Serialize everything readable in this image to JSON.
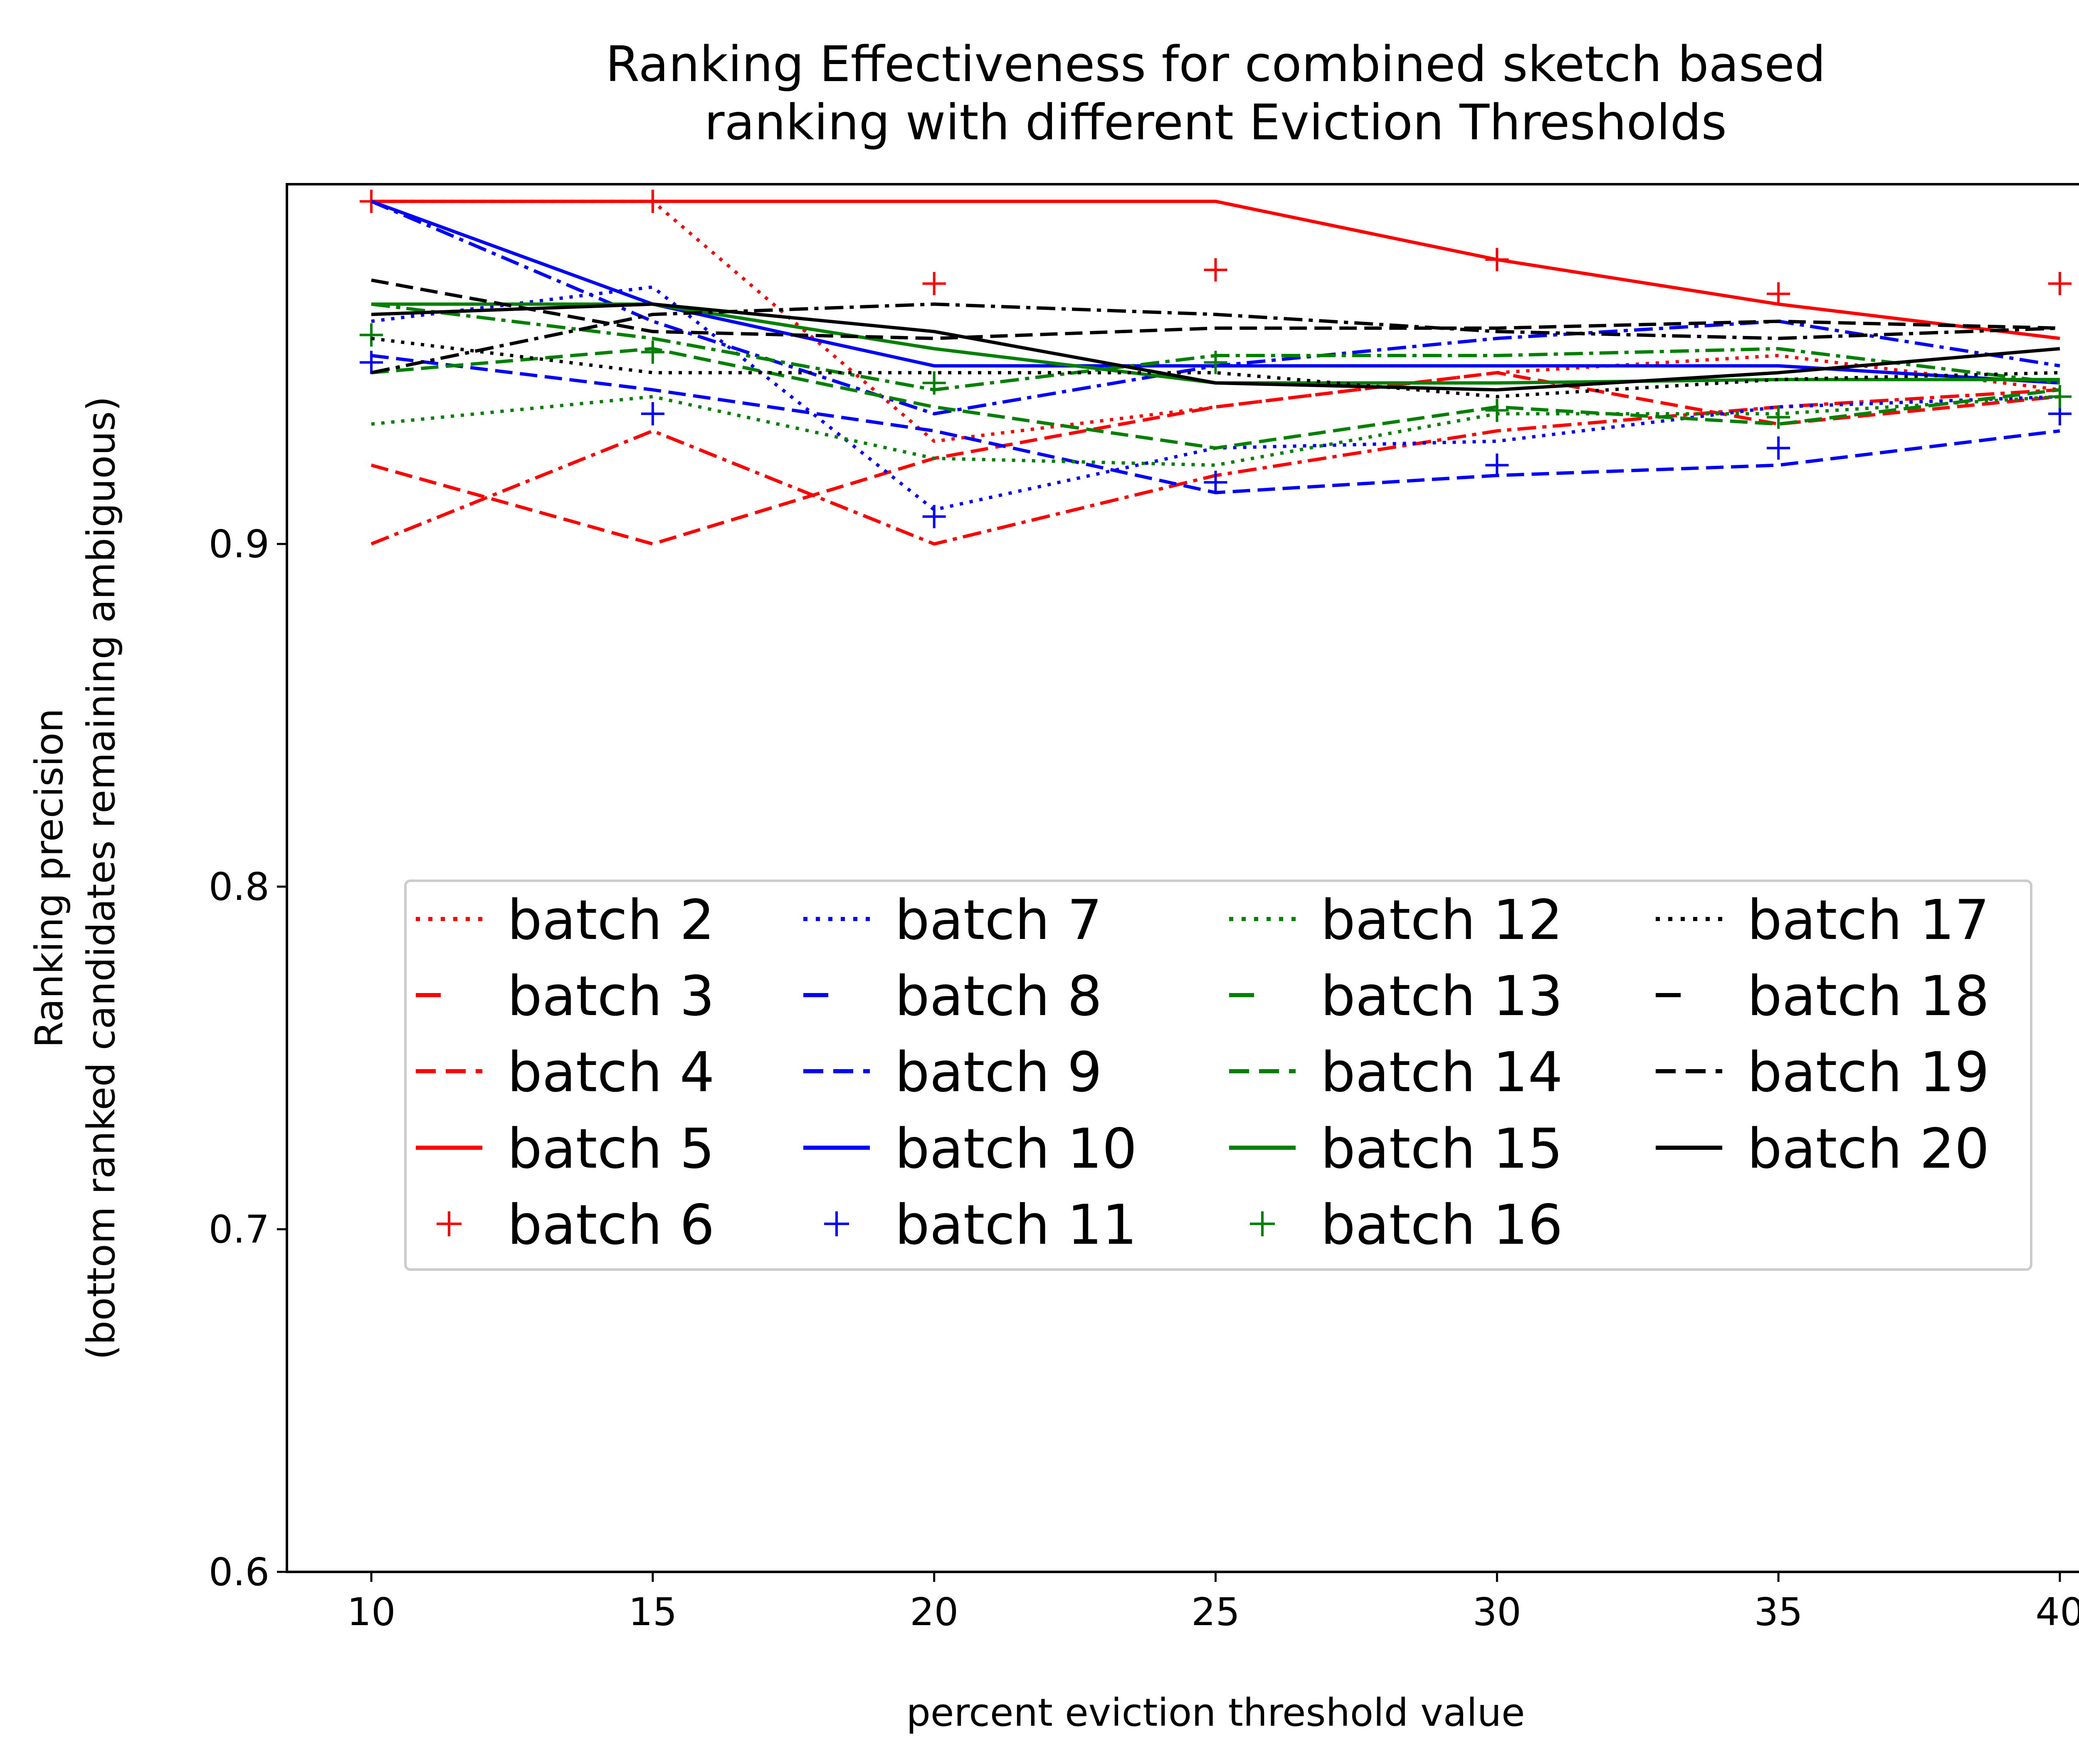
{
  "chart_data": {
    "type": "line",
    "title": "Ranking Effectiveness for combined sketch based\nranking with different Eviction Thresholds",
    "xlabel": "percent eviction threshold value",
    "ylabel": "Ranking precision\n(bottom ranked candidates remaining ambiguous)",
    "xlim": [
      8.5,
      41.5
    ],
    "ylim": [
      0.6,
      1.005
    ],
    "x": [
      10,
      15,
      20,
      25,
      30,
      35,
      40
    ],
    "xticks": [
      10,
      15,
      20,
      25,
      30,
      35,
      40
    ],
    "xtick_labels": [
      "10",
      "15",
      "20",
      "25",
      "30",
      "35",
      "40"
    ],
    "yticks": [
      0.6,
      0.7,
      0.8,
      0.9
    ],
    "ytick_labels": [
      "0.6",
      "0.7",
      "0.8",
      "0.9"
    ],
    "grid": false,
    "legend": {
      "placement": "center-left",
      "columns": 4
    },
    "series": [
      {
        "name": "batch 2",
        "color": "#ff0000",
        "style": "dotted",
        "values": [
          1.0,
          1.0,
          0.93,
          0.94,
          0.95,
          0.955,
          0.945
        ]
      },
      {
        "name": "batch 3",
        "color": "#ff0000",
        "style": "dashdot",
        "values": [
          0.9,
          0.933,
          0.9,
          0.92,
          0.933,
          0.94,
          0.945
        ]
      },
      {
        "name": "batch 4",
        "color": "#ff0000",
        "style": "dashed",
        "values": [
          0.923,
          0.9,
          0.925,
          0.94,
          0.95,
          0.935,
          0.943
        ]
      },
      {
        "name": "batch 5",
        "color": "#ff0000",
        "style": "solid",
        "values": [
          1.0,
          1.0,
          1.0,
          1.0,
          0.983,
          0.97,
          0.96
        ]
      },
      {
        "name": "batch 6",
        "color": "#ff0000",
        "style": "plus",
        "values": [
          1.0,
          1.0,
          0.976,
          0.98,
          0.983,
          0.973,
          0.976
        ]
      },
      {
        "name": "batch 7",
        "color": "#0000ff",
        "style": "dotted",
        "values": [
          0.965,
          0.975,
          0.91,
          0.928,
          0.93,
          0.94,
          0.943
        ]
      },
      {
        "name": "batch 8",
        "color": "#0000ff",
        "style": "dashdot",
        "values": [
          1.0,
          0.965,
          0.938,
          0.952,
          0.96,
          0.965,
          0.952
        ]
      },
      {
        "name": "batch 9",
        "color": "#0000ff",
        "style": "dashed",
        "values": [
          0.955,
          0.945,
          0.933,
          0.915,
          0.92,
          0.923,
          0.933
        ]
      },
      {
        "name": "batch 10",
        "color": "#0000ff",
        "style": "solid",
        "values": [
          1.0,
          0.97,
          0.952,
          0.952,
          0.952,
          0.952,
          0.947
        ]
      },
      {
        "name": "batch 11",
        "color": "#0000ff",
        "style": "plus",
        "values": [
          0.953,
          0.938,
          0.908,
          0.918,
          0.923,
          0.928,
          0.938
        ]
      },
      {
        "name": "batch 12",
        "color": "#008000",
        "style": "dotted",
        "values": [
          0.935,
          0.943,
          0.925,
          0.923,
          0.938,
          0.938,
          0.943
        ]
      },
      {
        "name": "batch 13",
        "color": "#008000",
        "style": "dashdot",
        "values": [
          0.97,
          0.96,
          0.945,
          0.955,
          0.955,
          0.957,
          0.947
        ]
      },
      {
        "name": "batch 14",
        "color": "#008000",
        "style": "dashed",
        "values": [
          0.95,
          0.957,
          0.94,
          0.928,
          0.94,
          0.935,
          0.945
        ]
      },
      {
        "name": "batch 15",
        "color": "#008000",
        "style": "solid",
        "values": [
          0.97,
          0.97,
          0.957,
          0.947,
          0.947,
          0.948,
          0.948
        ]
      },
      {
        "name": "batch 16",
        "color": "#008000",
        "style": "plus",
        "values": [
          0.961,
          0.956,
          0.947,
          0.953,
          0.939,
          0.937,
          0.943
        ]
      },
      {
        "name": "batch 17",
        "color": "#000000",
        "style": "dotted",
        "values": [
          0.96,
          0.95,
          0.95,
          0.95,
          0.943,
          0.948,
          0.95
        ]
      },
      {
        "name": "batch 18",
        "color": "#000000",
        "style": "dashdot",
        "values": [
          0.95,
          0.967,
          0.97,
          0.967,
          0.962,
          0.96,
          0.963
        ]
      },
      {
        "name": "batch 19",
        "color": "#000000",
        "style": "dashed",
        "values": [
          0.977,
          0.962,
          0.96,
          0.963,
          0.963,
          0.965,
          0.963
        ]
      },
      {
        "name": "batch 20",
        "color": "#000000",
        "style": "solid",
        "values": [
          0.967,
          0.97,
          0.962,
          0.947,
          0.945,
          0.95,
          0.957
        ]
      }
    ]
  }
}
